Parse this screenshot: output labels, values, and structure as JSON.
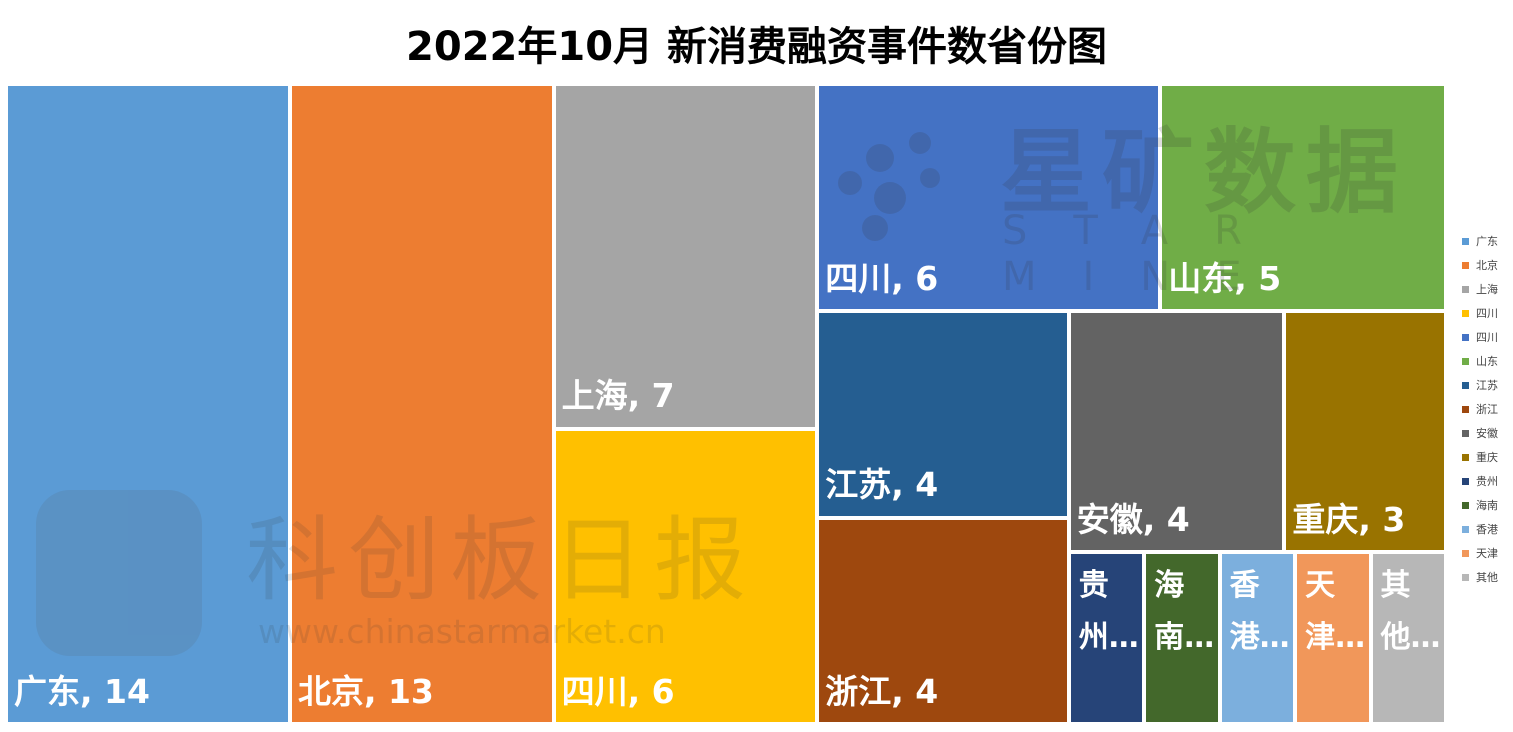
{
  "chart_data": {
    "type": "treemap",
    "title": "2022年10月 新消费融资事件数省份图",
    "items": [
      {
        "name": "广东",
        "value": 14,
        "label": "广东, 14",
        "color": "#5B9BD5"
      },
      {
        "name": "北京",
        "value": 13,
        "label": "北京, 13",
        "color": "#ED7D31"
      },
      {
        "name": "上海",
        "value": 7,
        "label": "上海, 7",
        "color": "#A5A5A5"
      },
      {
        "name": "四川",
        "value": 6,
        "label": "四川, 6",
        "color": "#FFC000"
      },
      {
        "name": "四川",
        "value": 6,
        "label": "四川, 6",
        "color": "#4472C4"
      },
      {
        "name": "山东",
        "value": 5,
        "label": "山东, 5",
        "color": "#70AD47"
      },
      {
        "name": "江苏",
        "value": 4,
        "label": "江苏, 4",
        "color": "#255E91"
      },
      {
        "name": "浙江",
        "value": 4,
        "label": "浙江, 4",
        "color": "#9E480E"
      },
      {
        "name": "安徽",
        "value": 4,
        "label": "安徽, 4",
        "color": "#636363"
      },
      {
        "name": "重庆",
        "value": 3,
        "label": "重庆, 3",
        "color": "#997300"
      },
      {
        "name": "贵州",
        "value": 1,
        "label": "贵州…",
        "color": "#264478"
      },
      {
        "name": "海南",
        "value": 1,
        "label": "海南…",
        "color": "#43682B"
      },
      {
        "name": "香港",
        "value": 1,
        "label": "香港…",
        "color": "#7CAFDD"
      },
      {
        "name": "天津",
        "value": 1,
        "label": "天津…",
        "color": "#F1975A"
      },
      {
        "name": "其他",
        "value": 1,
        "label": "其他…",
        "color": "#B7B7B7"
      }
    ],
    "legend_position": "right"
  },
  "watermarks": {
    "star_cn": "星矿数据",
    "star_en": "STAR MINE",
    "kc_cn": "科创板日报",
    "kc_url": "www.chinastarmarket.cn"
  }
}
